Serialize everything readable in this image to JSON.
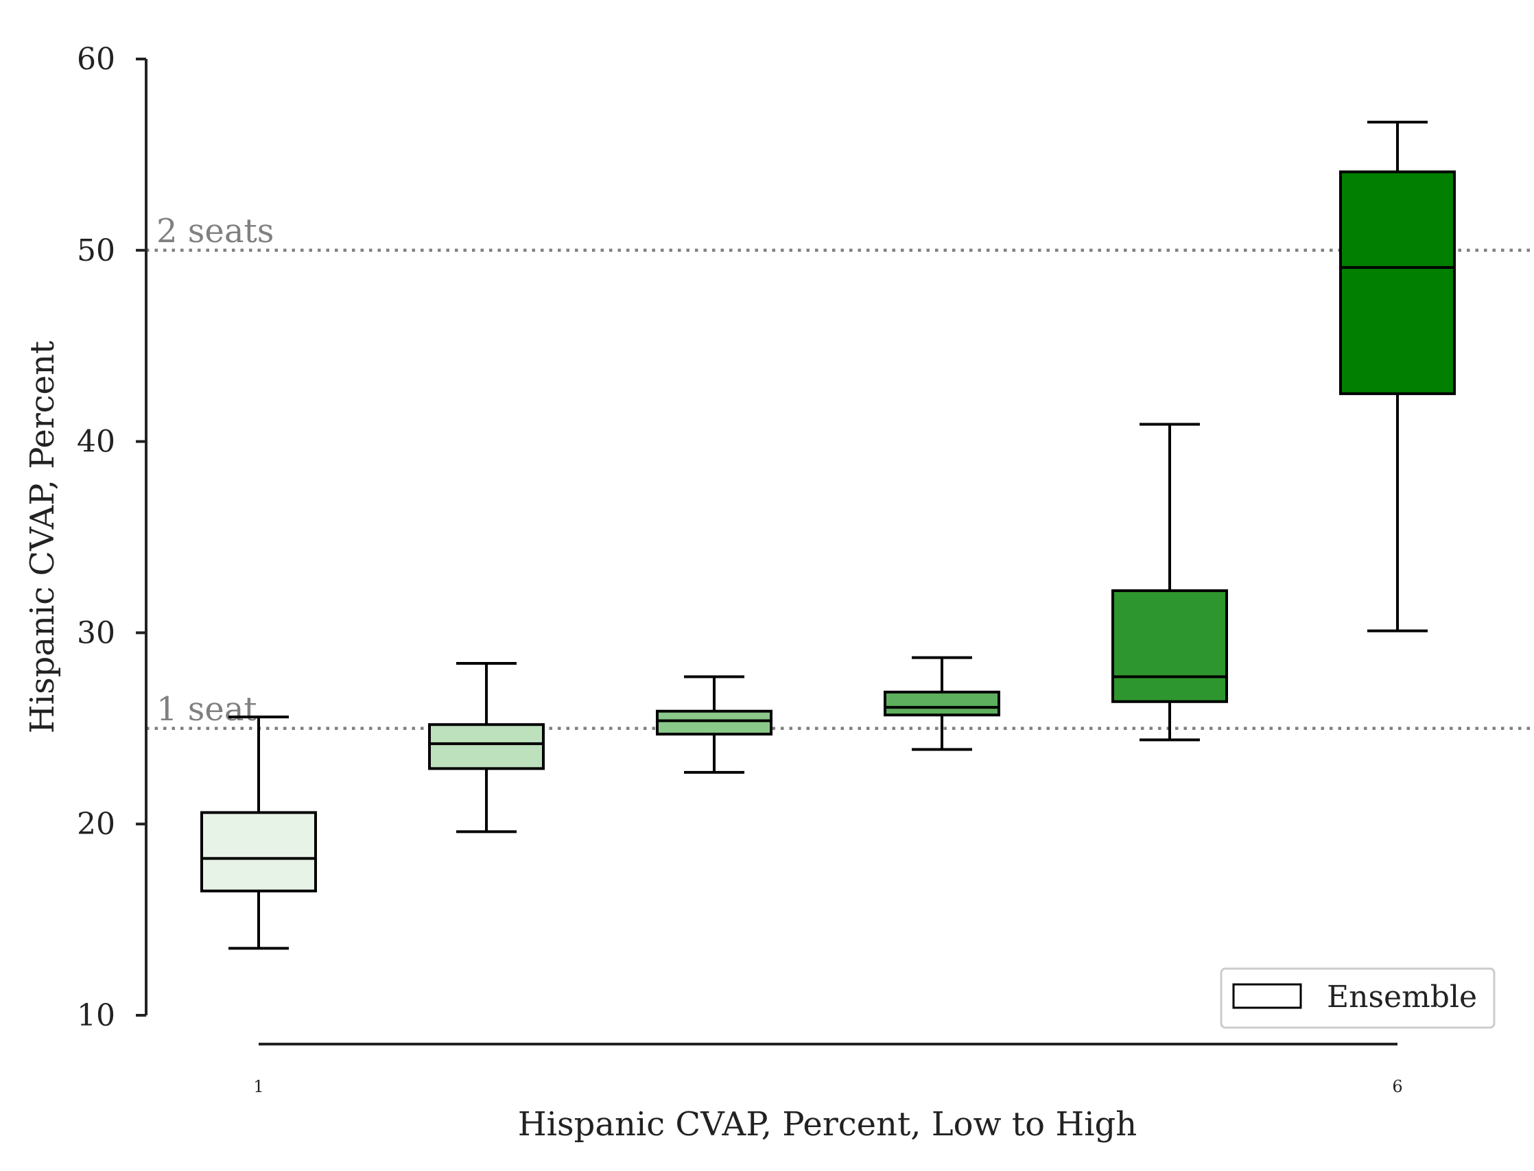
{
  "chart_data": {
    "type": "box",
    "xlabel": "Hispanic CVAP, Percent, Low to High",
    "ylabel": "Hispanic CVAP, Percent",
    "ylim": [
      10,
      60
    ],
    "yticks": [
      10,
      20,
      30,
      40,
      50,
      60
    ],
    "x": [
      1,
      2,
      3,
      4,
      5,
      6
    ],
    "xtick_labels": [
      "1",
      "6"
    ],
    "boxes": [
      {
        "x": 1,
        "whisker_low": 13.5,
        "q1": 16.5,
        "median": 18.2,
        "q3": 20.6,
        "whisker_high": 25.6,
        "color": "#e8f3e8"
      },
      {
        "x": 2,
        "whisker_low": 19.6,
        "q1": 22.9,
        "median": 24.2,
        "q3": 25.2,
        "whisker_high": 28.4,
        "color": "#bde0bd"
      },
      {
        "x": 3,
        "whisker_low": 22.7,
        "q1": 24.7,
        "median": 25.4,
        "q3": 25.9,
        "whisker_high": 27.7,
        "color": "#8ac98a"
      },
      {
        "x": 4,
        "whisker_low": 23.9,
        "q1": 25.7,
        "median": 26.1,
        "q3": 26.9,
        "whisker_high": 28.7,
        "color": "#5eb05e"
      },
      {
        "x": 5,
        "whisker_low": 24.4,
        "q1": 26.4,
        "median": 27.7,
        "q3": 32.2,
        "whisker_high": 40.9,
        "color": "#2e962e"
      },
      {
        "x": 6,
        "whisker_low": 30.1,
        "q1": 42.5,
        "median": 49.1,
        "q3": 54.1,
        "whisker_high": 56.7,
        "color": "#007f00"
      }
    ],
    "reference_lines": [
      {
        "y": 50,
        "label": "2 seats"
      },
      {
        "y": 25,
        "label": "1 seat"
      }
    ],
    "legend": {
      "position": "lower-right",
      "entries": [
        "Ensemble"
      ]
    },
    "grid": false
  }
}
